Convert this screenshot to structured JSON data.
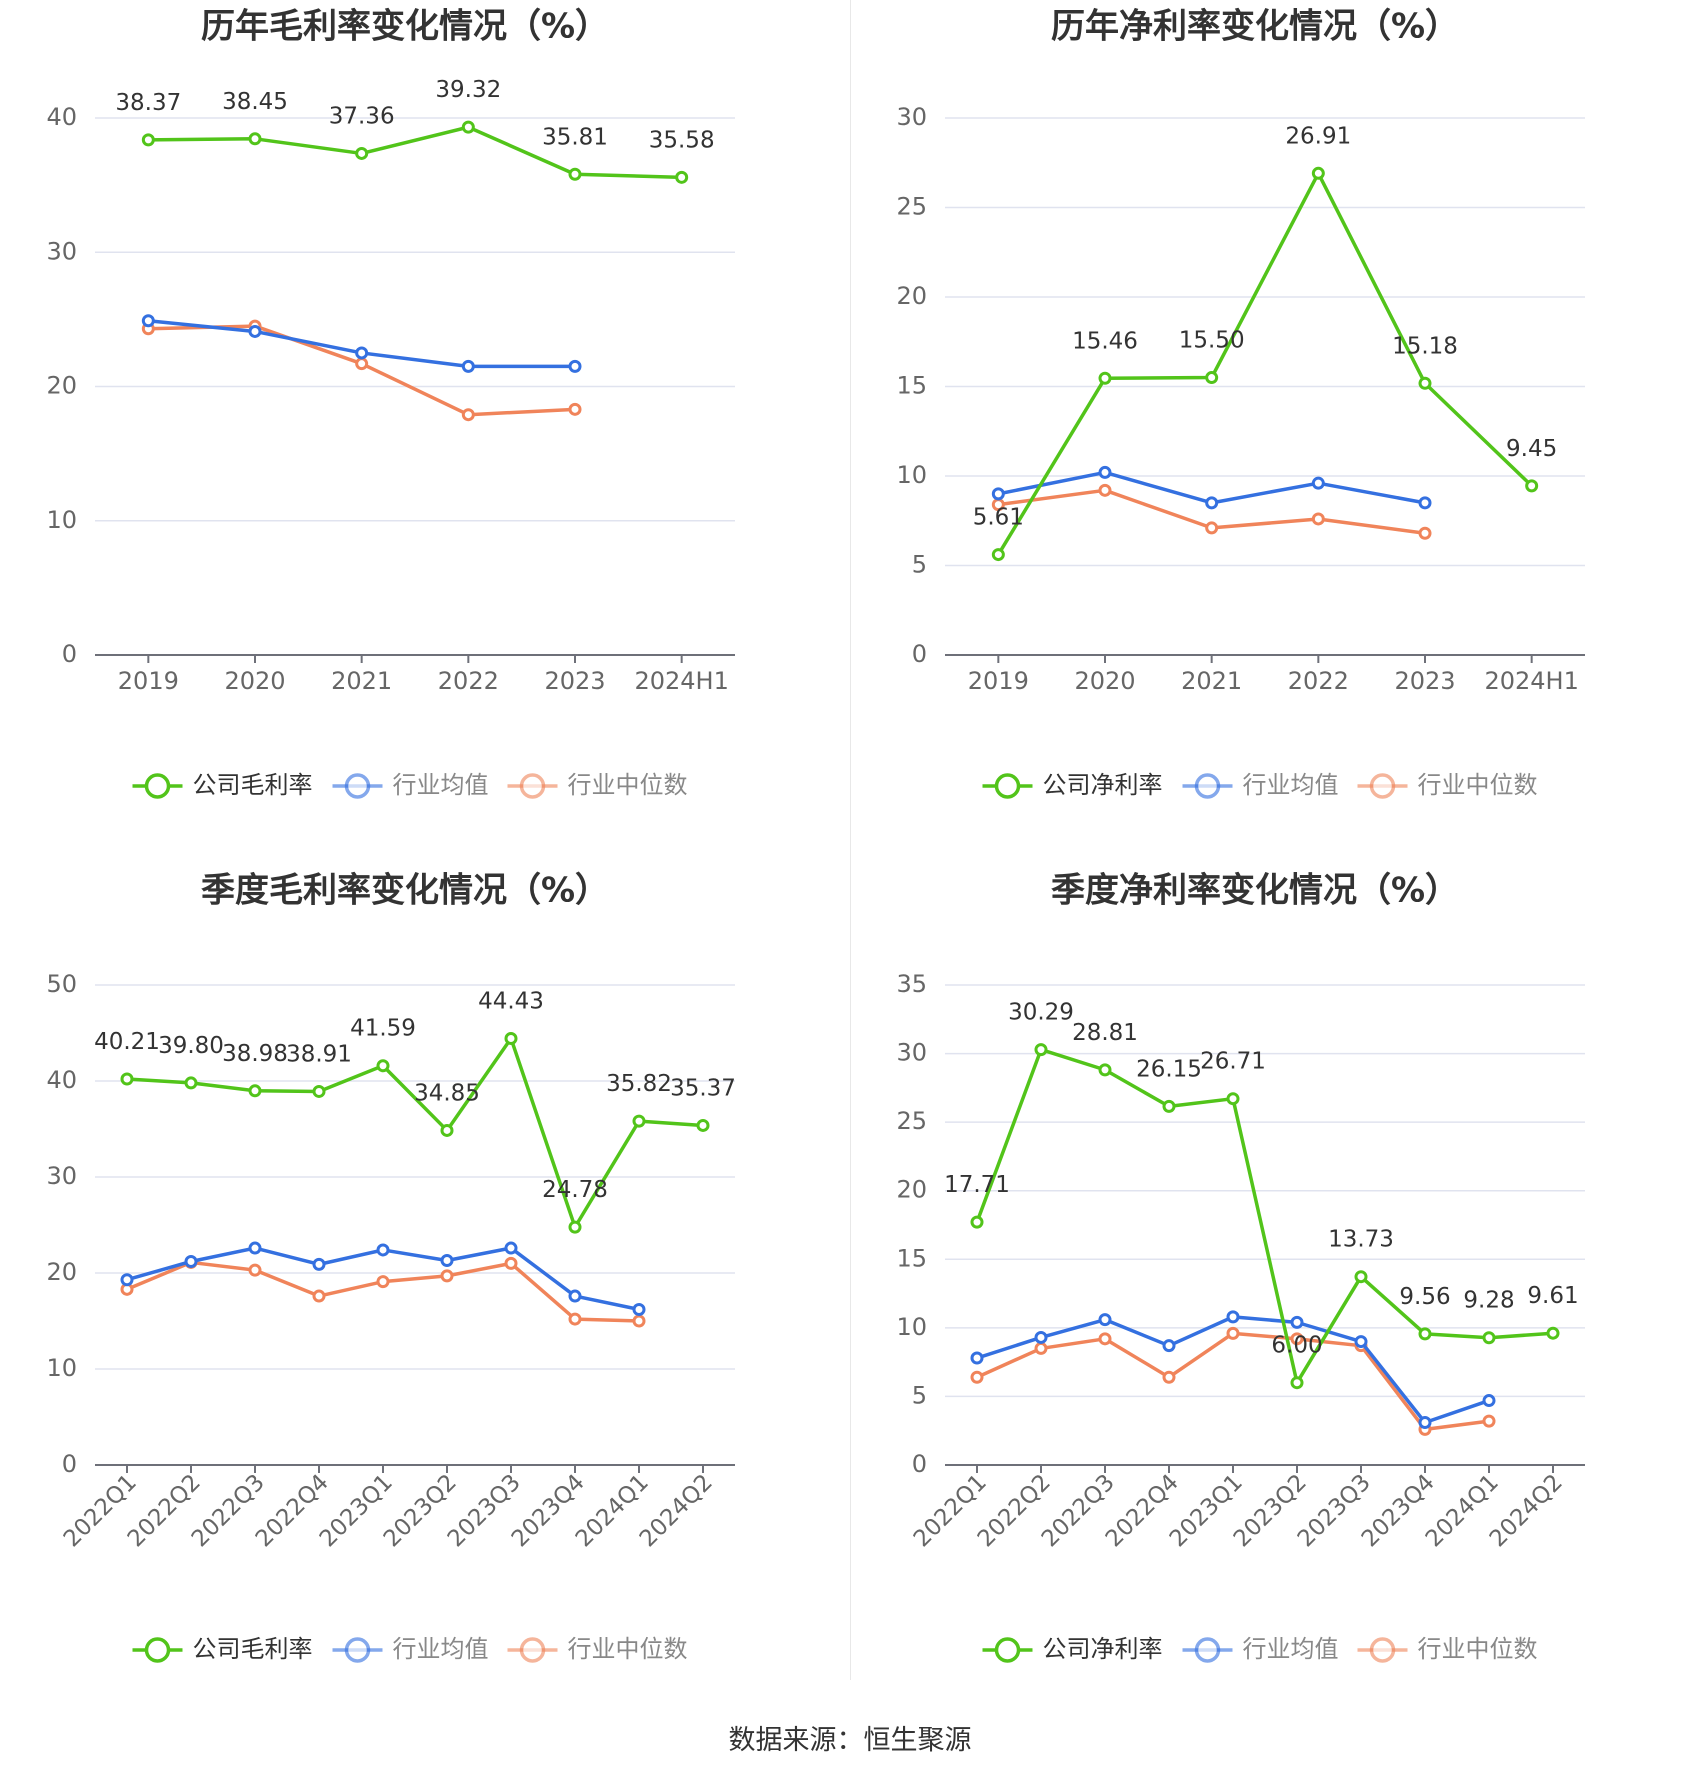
{
  "colors": {
    "company": "#52c41a",
    "avg": "#3470e0",
    "median": "#f0845a",
    "grid": "#e0e3ef",
    "axis": "#666666",
    "text": "#333333"
  },
  "charts": [
    {
      "id": "annual-gross",
      "title": "历年毛利率变化情况（%）",
      "categories": [
        "2019",
        "2020",
        "2021",
        "2022",
        "2023",
        "2024H1"
      ],
      "y_ticks": [
        0,
        10,
        20,
        30,
        40
      ],
      "ylim": [
        0,
        40
      ],
      "rotate_x": false,
      "legend": [
        "公司毛利率",
        "行业均值",
        "行业中位数"
      ],
      "series": [
        {
          "name": "公司毛利率",
          "key": "company",
          "values": [
            38.37,
            38.45,
            37.36,
            39.32,
            35.81,
            35.58
          ],
          "labels": true
        },
        {
          "name": "行业均值",
          "key": "avg",
          "values": [
            24.9,
            24.1,
            22.5,
            21.5,
            21.5,
            null
          ],
          "labels": false
        },
        {
          "name": "行业中位数",
          "key": "median",
          "values": [
            24.3,
            24.5,
            21.7,
            17.9,
            18.3,
            null
          ],
          "labels": false
        }
      ]
    },
    {
      "id": "annual-net",
      "title": "历年净利率变化情况（%）",
      "categories": [
        "2019",
        "2020",
        "2021",
        "2022",
        "2023",
        "2024H1"
      ],
      "y_ticks": [
        0,
        5,
        10,
        15,
        20,
        25,
        30
      ],
      "ylim": [
        0,
        30
      ],
      "rotate_x": false,
      "legend": [
        "公司净利率",
        "行业均值",
        "行业中位数"
      ],
      "series": [
        {
          "name": "公司净利率",
          "key": "company",
          "values": [
            5.61,
            15.46,
            15.5,
            26.91,
            15.18,
            9.45
          ],
          "labels": true
        },
        {
          "name": "行业均值",
          "key": "avg",
          "values": [
            9.0,
            10.2,
            8.5,
            9.6,
            8.5,
            null
          ],
          "labels": false
        },
        {
          "name": "行业中位数",
          "key": "median",
          "values": [
            8.4,
            9.2,
            7.1,
            7.6,
            6.8,
            null
          ],
          "labels": false
        }
      ]
    },
    {
      "id": "quarterly-gross",
      "title": "季度毛利率变化情况（%）",
      "categories": [
        "2022Q1",
        "2022Q2",
        "2022Q3",
        "2022Q4",
        "2023Q1",
        "2023Q2",
        "2023Q3",
        "2023Q4",
        "2024Q1",
        "2024Q2"
      ],
      "y_ticks": [
        0,
        10,
        20,
        30,
        40,
        50
      ],
      "ylim": [
        0,
        50
      ],
      "rotate_x": true,
      "legend": [
        "公司毛利率",
        "行业均值",
        "行业中位数"
      ],
      "series": [
        {
          "name": "公司毛利率",
          "key": "company",
          "values": [
            40.21,
            39.8,
            38.98,
            38.91,
            41.59,
            34.85,
            44.43,
            24.78,
            35.82,
            35.37
          ],
          "labels": true
        },
        {
          "name": "行业均值",
          "key": "avg",
          "values": [
            19.3,
            21.2,
            22.6,
            20.9,
            22.4,
            21.3,
            22.6,
            17.6,
            16.2,
            null
          ],
          "labels": false
        },
        {
          "name": "行业中位数",
          "key": "median",
          "values": [
            18.3,
            21.1,
            20.3,
            17.6,
            19.1,
            19.7,
            21.0,
            15.2,
            15.0,
            null
          ],
          "labels": false
        }
      ]
    },
    {
      "id": "quarterly-net",
      "title": "季度净利率变化情况（%）",
      "categories": [
        "2022Q1",
        "2022Q2",
        "2022Q3",
        "2022Q4",
        "2023Q1",
        "2023Q2",
        "2023Q3",
        "2023Q4",
        "2024Q1",
        "2024Q2"
      ],
      "y_ticks": [
        0,
        5,
        10,
        15,
        20,
        25,
        30,
        35
      ],
      "ylim": [
        0,
        35
      ],
      "rotate_x": true,
      "legend": [
        "公司净利率",
        "行业均值",
        "行业中位数"
      ],
      "series": [
        {
          "name": "公司净利率",
          "key": "company",
          "values": [
            17.71,
            30.29,
            28.81,
            26.15,
            26.71,
            6.0,
            13.73,
            9.56,
            9.28,
            9.61
          ],
          "labels": true
        },
        {
          "name": "行业均值",
          "key": "avg",
          "values": [
            7.8,
            9.3,
            10.6,
            8.7,
            10.8,
            10.4,
            9.0,
            3.1,
            4.7,
            null
          ],
          "labels": false
        },
        {
          "name": "行业中位数",
          "key": "median",
          "values": [
            6.4,
            8.5,
            9.2,
            6.4,
            9.6,
            9.2,
            8.7,
            2.6,
            3.2,
            null
          ],
          "labels": false
        }
      ]
    }
  ],
  "footer": {
    "source": "数据来源：恒生聚源"
  }
}
